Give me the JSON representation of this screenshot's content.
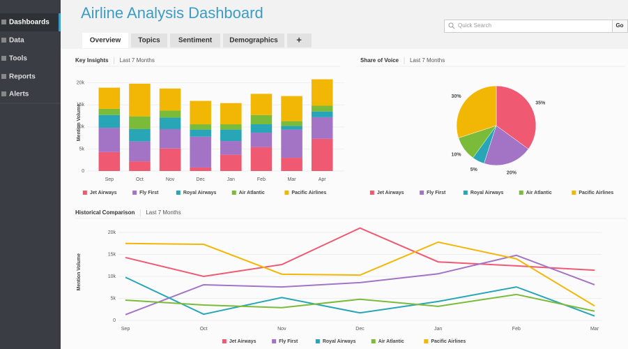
{
  "sidebar": {
    "items": [
      "Dashboards",
      "Data",
      "Tools",
      "Reports",
      "Alerts"
    ]
  },
  "header": {
    "title": "Airline Analysis Dashboard"
  },
  "tabs": [
    "Overview",
    "Topics",
    "Sentiment",
    "Demographics",
    "+"
  ],
  "search": {
    "placeholder": "Quick Search",
    "button": "Go"
  },
  "chart_data": [
    {
      "type": "bar",
      "stacked": true,
      "title": "Key Insights",
      "subtitle": "Last 7 Months",
      "y_label": "Mention Volume",
      "categories": [
        "Sep",
        "Oct",
        "Nov",
        "Dec",
        "Jan",
        "Feb",
        "Mar",
        "Apr"
      ],
      "series": [
        {
          "name": "Jet Airways",
          "color": "#ef5a72",
          "values": [
            4300,
            2200,
            5100,
            800,
            3700,
            5400,
            3000,
            7300
          ]
        },
        {
          "name": "Fly First",
          "color": "#a374c5",
          "values": [
            5500,
            4500,
            4400,
            7000,
            3100,
            3300,
            6400,
            4900
          ]
        },
        {
          "name": "Royal Airways",
          "color": "#28a6b8",
          "values": [
            2900,
            2800,
            2600,
            1600,
            2600,
            1900,
            800,
            1300
          ]
        },
        {
          "name": "Air Atlantic",
          "color": "#7bbb3a",
          "values": [
            1400,
            2900,
            1600,
            1200,
            1200,
            2100,
            1100,
            1300
          ]
        },
        {
          "name": "Pacific Airlines",
          "color": "#f2b705",
          "values": [
            4800,
            7400,
            5000,
            5300,
            4800,
            4800,
            5700,
            6000
          ]
        }
      ],
      "ylim": [
        0,
        22000
      ],
      "yticks": [
        0,
        {
          "value": 5000,
          "label": "5k"
        },
        {
          "value": 10000,
          "label": "10k"
        },
        {
          "value": 15000,
          "label": "15k"
        },
        {
          "value": 20000,
          "label": "20k"
        }
      ],
      "grid": true,
      "legend": "bottom"
    },
    {
      "type": "pie",
      "title": "Share of Voice",
      "subtitle": "Last 7 Months",
      "categories": [
        "Jet Airways",
        "Fly First",
        "Royal Airways",
        "Air Atlantic",
        "Pacific Airlines"
      ],
      "values": [
        35,
        20,
        5,
        10,
        30
      ],
      "value_labels": [
        "35%",
        "20%",
        "5%",
        "10%",
        "30%"
      ],
      "colors": [
        "#ef5a72",
        "#a374c5",
        "#28a6b8",
        "#7bbb3a",
        "#f2b705"
      ],
      "legend": "bottom"
    },
    {
      "type": "line",
      "title": "Historical Comparison",
      "subtitle": "Last 7 Months",
      "y_label": "Mention Volume",
      "categories": [
        "Sep",
        "Oct",
        "Nov",
        "Dec",
        "Jan",
        "Feb",
        "Mar"
      ],
      "series": [
        {
          "name": "Jet Airways",
          "color": "#ef5a72",
          "values": [
            14300,
            10000,
            12700,
            21000,
            13300,
            12400,
            11400
          ]
        },
        {
          "name": "Fly First",
          "color": "#a374c5",
          "values": [
            1300,
            8100,
            7600,
            8600,
            10600,
            14800,
            8100
          ]
        },
        {
          "name": "Royal Airways",
          "color": "#28a6b8",
          "values": [
            9800,
            1400,
            5200,
            1700,
            4300,
            7600,
            1000
          ]
        },
        {
          "name": "Air Atlantic",
          "color": "#7bbb3a",
          "values": [
            4600,
            3500,
            2900,
            4800,
            3200,
            5900,
            2100
          ]
        },
        {
          "name": "Pacific Airlines",
          "color": "#f2b705",
          "values": [
            17500,
            17300,
            10500,
            10300,
            17800,
            14000,
            3300
          ]
        }
      ],
      "ylim": [
        0,
        22000
      ],
      "yticks": [
        0,
        {
          "value": 5000,
          "label": "5k"
        },
        {
          "value": 10000,
          "label": "10k"
        },
        {
          "value": 15000,
          "label": "15k"
        },
        {
          "value": 20000,
          "label": "20k"
        }
      ],
      "grid": true,
      "legend": "bottom"
    }
  ]
}
